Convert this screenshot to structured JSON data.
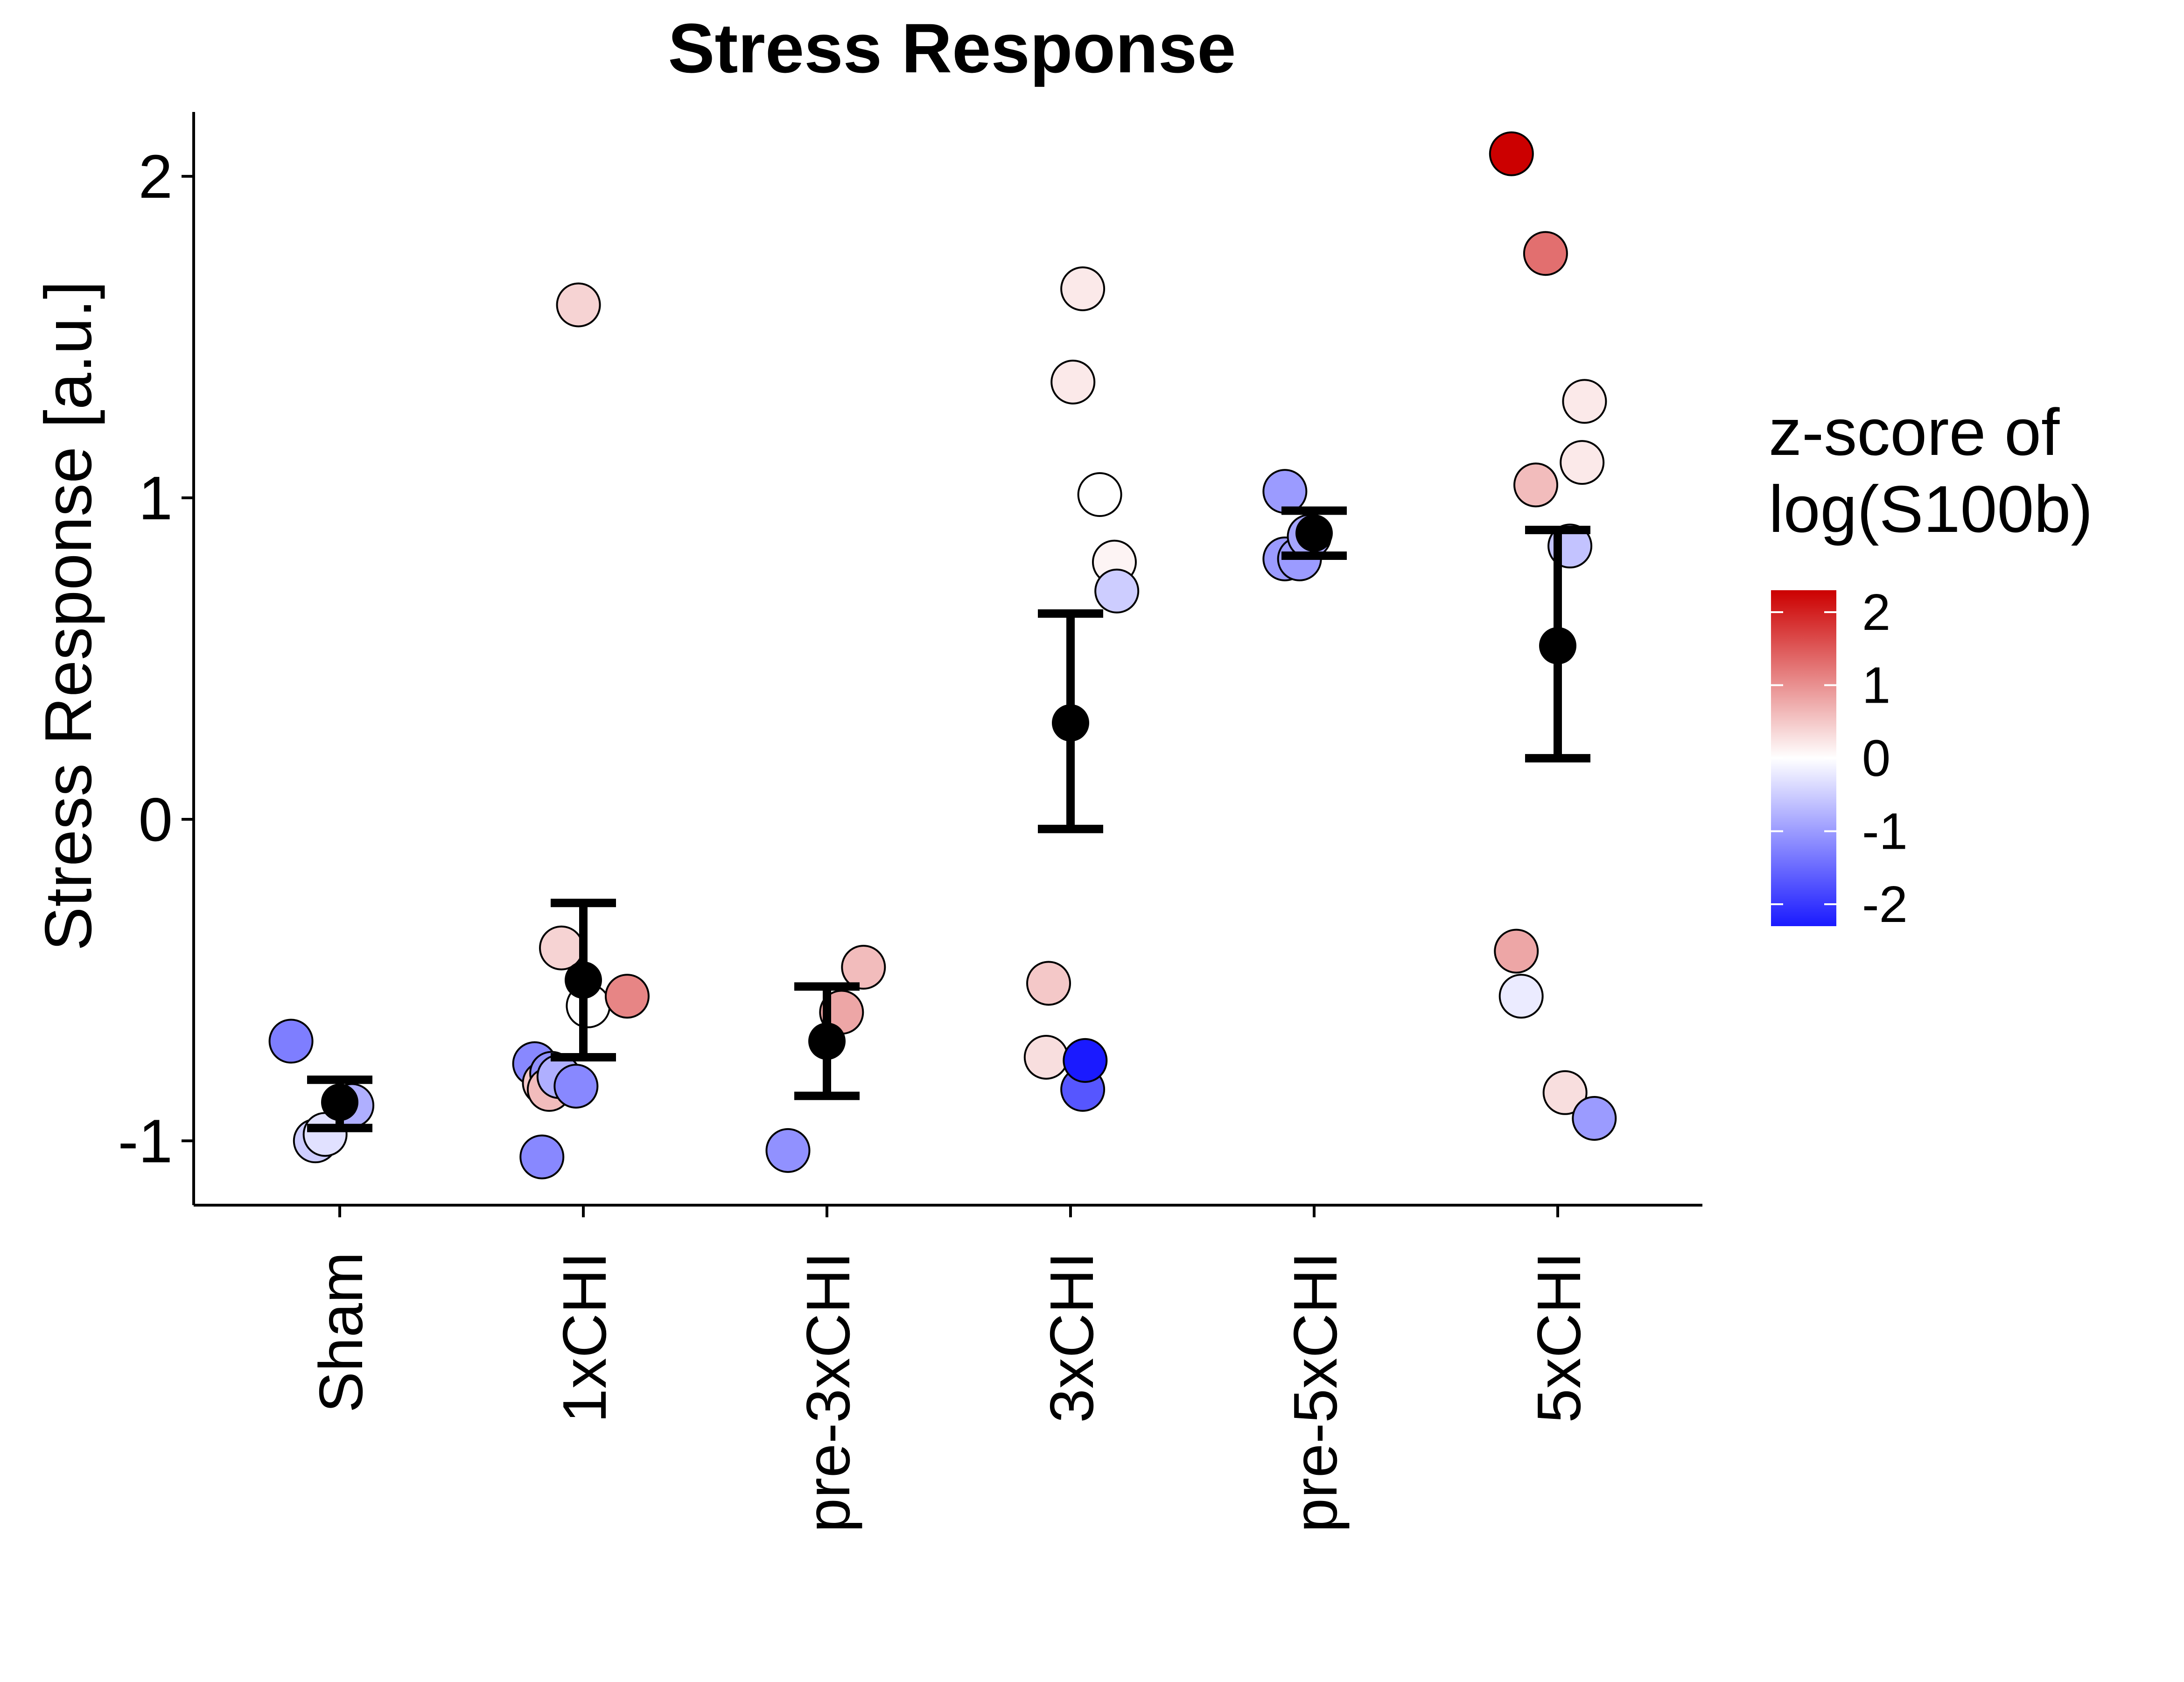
{
  "chart_data": {
    "type": "scatter",
    "title": "Stress Response",
    "xlabel": "",
    "ylabel": "Stress Response [a.u.]",
    "ylim": [
      -1.2,
      2.2
    ],
    "yticks": [
      -1,
      0,
      1,
      2
    ],
    "ytick_labels": [
      "-1",
      "0",
      "1",
      "2"
    ],
    "categories": [
      "Sham",
      "1xCHI",
      "pre-3xCHI",
      "3xCHI",
      "pre-5xCHI",
      "5xCHI"
    ],
    "grid": false,
    "legend_position": "right",
    "colorbar": {
      "title_lines": [
        "z-score of",
        "log(S100b)"
      ],
      "range": [
        -2.3,
        2.3
      ],
      "ticks": [
        2,
        1,
        0,
        -1,
        -2
      ],
      "tick_labels": [
        "2",
        "1",
        "0",
        "-1",
        "-2"
      ],
      "low_color": "#1a1aff",
      "mid_color": "#ffffff",
      "high_color": "#cc0000"
    },
    "summary": [
      {
        "category": "Sham",
        "mean": -0.88,
        "lower": -0.96,
        "upper": -0.81
      },
      {
        "category": "1xCHI",
        "mean": -0.5,
        "lower": -0.74,
        "upper": -0.26
      },
      {
        "category": "pre-3xCHI",
        "mean": -0.69,
        "lower": -0.86,
        "upper": -0.52
      },
      {
        "category": "3xCHI",
        "mean": 0.3,
        "lower": -0.03,
        "upper": 0.64
      },
      {
        "category": "pre-5xCHI",
        "mean": 0.89,
        "lower": 0.82,
        "upper": 0.96
      },
      {
        "category": "5xCHI",
        "mean": 0.54,
        "lower": 0.19,
        "upper": 0.9
      }
    ],
    "points": [
      {
        "category": "Sham",
        "jitter": -0.2,
        "y": -0.69,
        "z": -1.3
      },
      {
        "category": "Sham",
        "jitter": -0.1,
        "y": -1.0,
        "z": -0.5
      },
      {
        "category": "Sham",
        "jitter": -0.06,
        "y": -0.98,
        "z": -0.3
      },
      {
        "category": "Sham",
        "jitter": 0.05,
        "y": -0.89,
        "z": -0.8
      },
      {
        "category": "1xCHI",
        "jitter": -0.2,
        "y": -0.76,
        "z": -1.2
      },
      {
        "category": "1xCHI",
        "jitter": -0.16,
        "y": -0.82,
        "z": 0.5
      },
      {
        "category": "1xCHI",
        "jitter": -0.13,
        "y": -0.79,
        "z": -1.1
      },
      {
        "category": "1xCHI",
        "jitter": -0.14,
        "y": -0.84,
        "z": 0.6
      },
      {
        "category": "1xCHI",
        "jitter": -0.1,
        "y": -0.8,
        "z": -0.8
      },
      {
        "category": "1xCHI",
        "jitter": -0.09,
        "y": -0.4,
        "z": 0.4
      },
      {
        "category": "1xCHI",
        "jitter": -0.03,
        "y": -0.83,
        "z": -1.2
      },
      {
        "category": "1xCHI",
        "jitter": -0.17,
        "y": -1.05,
        "z": -1.2
      },
      {
        "category": "1xCHI",
        "jitter": -0.02,
        "y": 1.6,
        "z": 0.4
      },
      {
        "category": "1xCHI",
        "jitter": 0.02,
        "y": -0.58,
        "z": 0.0
      },
      {
        "category": "1xCHI",
        "jitter": 0.18,
        "y": -0.55,
        "z": 1.1
      },
      {
        "category": "pre-3xCHI",
        "jitter": -0.16,
        "y": -1.03,
        "z": -1.1
      },
      {
        "category": "pre-3xCHI",
        "jitter": 0.06,
        "y": -0.6,
        "z": 0.8
      },
      {
        "category": "pre-3xCHI",
        "jitter": 0.15,
        "y": -0.46,
        "z": 0.6
      },
      {
        "category": "3xCHI",
        "jitter": -0.09,
        "y": -0.51,
        "z": 0.5
      },
      {
        "category": "3xCHI",
        "jitter": -0.1,
        "y": -0.74,
        "z": 0.3
      },
      {
        "category": "3xCHI",
        "jitter": 0.05,
        "y": -0.84,
        "z": -1.7
      },
      {
        "category": "3xCHI",
        "jitter": 0.06,
        "y": -0.75,
        "z": -2.3
      },
      {
        "category": "3xCHI",
        "jitter": 0.01,
        "y": 1.36,
        "z": 0.2
      },
      {
        "category": "3xCHI",
        "jitter": 0.05,
        "y": 1.65,
        "z": 0.2
      },
      {
        "category": "3xCHI",
        "jitter": 0.12,
        "y": 1.01,
        "z": 0.0
      },
      {
        "category": "3xCHI",
        "jitter": 0.18,
        "y": 0.8,
        "z": 0.1
      },
      {
        "category": "3xCHI",
        "jitter": 0.19,
        "y": 0.71,
        "z": -0.5
      },
      {
        "category": "pre-5xCHI",
        "jitter": -0.12,
        "y": 1.02,
        "z": -1.0
      },
      {
        "category": "pre-5xCHI",
        "jitter": -0.12,
        "y": 0.81,
        "z": -1.0
      },
      {
        "category": "pre-5xCHI",
        "jitter": -0.06,
        "y": 0.81,
        "z": -1.0
      },
      {
        "category": "pre-5xCHI",
        "jitter": -0.02,
        "y": 0.88,
        "z": -0.9
      },
      {
        "category": "5xCHI",
        "jitter": -0.19,
        "y": 2.07,
        "z": 2.3
      },
      {
        "category": "5xCHI",
        "jitter": -0.05,
        "y": 1.76,
        "z": 1.3
      },
      {
        "category": "5xCHI",
        "jitter": 0.11,
        "y": 1.3,
        "z": 0.2
      },
      {
        "category": "5xCHI",
        "jitter": 0.1,
        "y": 1.11,
        "z": 0.2
      },
      {
        "category": "5xCHI",
        "jitter": -0.09,
        "y": 1.04,
        "z": 0.6
      },
      {
        "category": "5xCHI",
        "jitter": 0.05,
        "y": 0.85,
        "z": -0.6
      },
      {
        "category": "5xCHI",
        "jitter": -0.17,
        "y": -0.41,
        "z": 0.8
      },
      {
        "category": "5xCHI",
        "jitter": -0.15,
        "y": -0.55,
        "z": -0.2
      },
      {
        "category": "5xCHI",
        "jitter": 0.03,
        "y": -0.85,
        "z": 0.3
      },
      {
        "category": "5xCHI",
        "jitter": 0.15,
        "y": -0.93,
        "z": -1.0
      }
    ]
  }
}
